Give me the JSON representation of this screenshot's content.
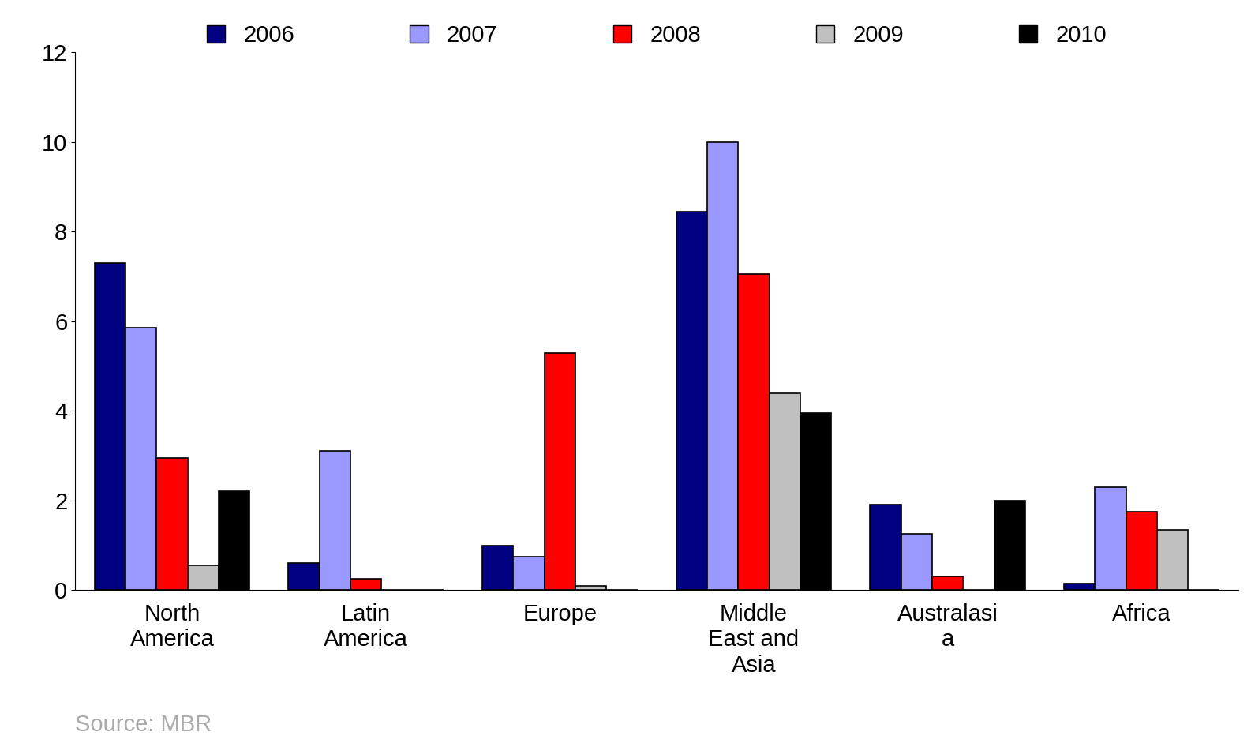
{
  "chart_data": {
    "type": "bar",
    "categories": [
      "North America",
      "Latin America",
      "Europe",
      "Middle East and Asia",
      "Australasia",
      "Africa"
    ],
    "series": [
      {
        "name": "2006",
        "color": "#000080",
        "values": [
          7.3,
          0.6,
          1.0,
          8.45,
          1.9,
          0.15
        ]
      },
      {
        "name": "2007",
        "color": "#9999ff",
        "values": [
          5.85,
          3.1,
          0.75,
          10.0,
          1.25,
          2.3
        ]
      },
      {
        "name": "2008",
        "color": "#ff0000",
        "values": [
          2.95,
          0.25,
          5.3,
          7.05,
          0.3,
          1.75
        ]
      },
      {
        "name": "2009",
        "color": "#c0c0c0",
        "values": [
          0.55,
          0,
          0.1,
          4.4,
          0,
          1.35
        ]
      },
      {
        "name": "2010",
        "color": "#000000",
        "values": [
          2.2,
          0,
          0,
          3.95,
          2.0,
          0
        ]
      }
    ],
    "ylim": [
      0,
      12
    ],
    "yticks": [
      0,
      2,
      4,
      6,
      8,
      10,
      12
    ],
    "grid": false,
    "legend": "upper center",
    "annotations": [
      "Source: MBR"
    ]
  }
}
